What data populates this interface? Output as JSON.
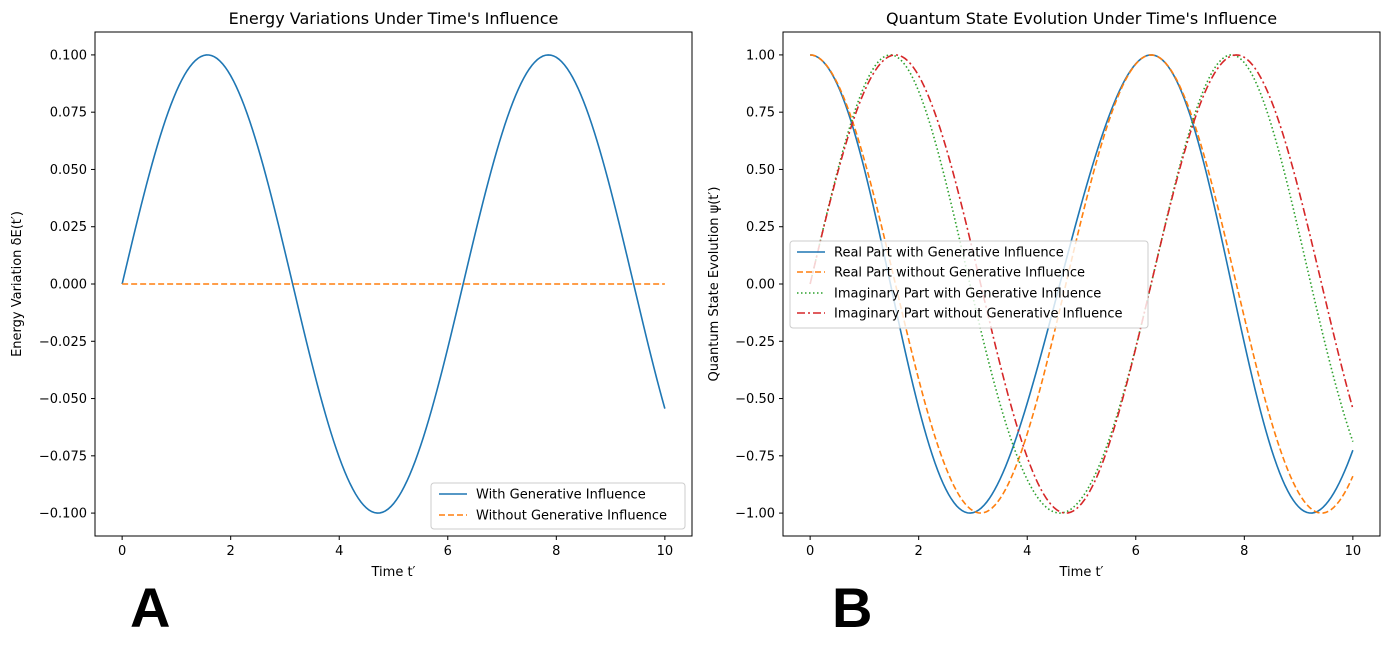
{
  "panel_labels": [
    "A",
    "B"
  ],
  "chart_data": [
    {
      "type": "line",
      "title": "Energy Variations Under Time's Influence",
      "xlabel": "Time t′",
      "ylabel": "Energy Variation δE(t′)",
      "xlim": [
        -0.5,
        10.5
      ],
      "ylim": [
        -0.11,
        0.11
      ],
      "xticks": [
        0,
        2,
        4,
        6,
        8,
        10
      ],
      "xtick_labels": [
        "0",
        "2",
        "4",
        "6",
        "8",
        "10"
      ],
      "yticks": [
        -0.1,
        -0.075,
        -0.05,
        -0.025,
        0.0,
        0.025,
        0.05,
        0.075,
        0.1
      ],
      "ytick_labels": [
        "−0.100",
        "−0.075",
        "−0.050",
        "−0.025",
        "0.000",
        "0.025",
        "0.050",
        "0.075",
        "0.100"
      ],
      "legend_position": "lower right",
      "series": [
        {
          "name": "With Generative Influence",
          "formula": "0.1*sin(t)",
          "color": "#1f77b4",
          "style": "solid",
          "x_range": [
            0,
            10
          ],
          "samples": 201
        },
        {
          "name": "Without Generative Influence",
          "formula": "0",
          "color": "#ff7f0e",
          "style": "dashed",
          "x_range": [
            0,
            10
          ],
          "samples": 201
        }
      ]
    },
    {
      "type": "line",
      "title": "Quantum State Evolution Under Time's Influence",
      "xlabel": "Time t′",
      "ylabel": "Quantum State Evolution ψ(t′)",
      "xlim": [
        -0.5,
        10.5
      ],
      "ylim": [
        -1.1,
        1.1
      ],
      "xticks": [
        0,
        2,
        4,
        6,
        8,
        10
      ],
      "xtick_labels": [
        "0",
        "2",
        "4",
        "6",
        "8",
        "10"
      ],
      "yticks": [
        -1.0,
        -0.75,
        -0.5,
        -0.25,
        0.0,
        0.25,
        0.5,
        0.75,
        1.0
      ],
      "ytick_labels": [
        "−1.00",
        "−0.75",
        "−0.50",
        "−0.25",
        "0.00",
        "0.25",
        "0.50",
        "0.75",
        "1.00"
      ],
      "legend_position": "center left",
      "series": [
        {
          "name": "Real Part with Generative Influence",
          "formula": "cos(t + 0.1*(1 - cos(t)))",
          "color": "#1f77b4",
          "style": "solid",
          "x_range": [
            0,
            10
          ],
          "samples": 201
        },
        {
          "name": "Real Part without Generative Influence",
          "formula": "cos(t)",
          "color": "#ff7f0e",
          "style": "dashed",
          "x_range": [
            0,
            10
          ],
          "samples": 201
        },
        {
          "name": "Imaginary Part with Generative Influence",
          "formula": "sin(t + 0.1*(1 - cos(t)))",
          "color": "#2ca02c",
          "style": "dotted",
          "x_range": [
            0,
            10
          ],
          "samples": 201
        },
        {
          "name": "Imaginary Part without Generative Influence",
          "formula": "sin(t)",
          "color": "#d62728",
          "style": "dashdot",
          "x_range": [
            0,
            10
          ],
          "samples": 201
        }
      ]
    }
  ]
}
